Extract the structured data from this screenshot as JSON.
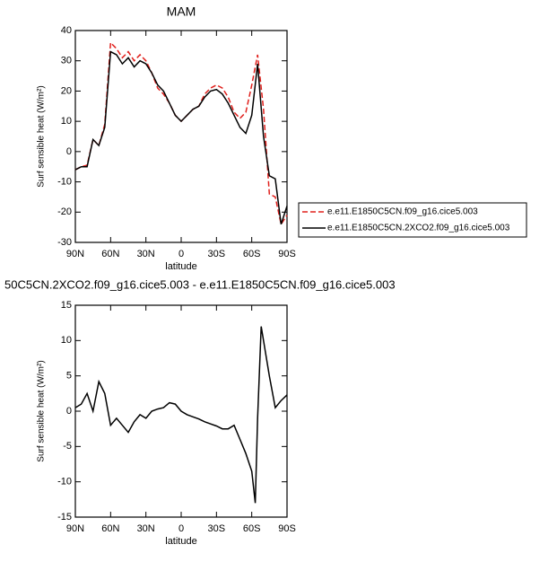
{
  "chart_data": [
    {
      "type": "line",
      "title": "MAM",
      "xlabel": "latitude",
      "ylabel": "Surf sensible heat (W/m²)",
      "x": [
        90,
        85,
        80,
        75,
        70,
        65,
        60,
        55,
        50,
        45,
        40,
        35,
        30,
        25,
        20,
        15,
        10,
        5,
        0,
        -5,
        -10,
        -15,
        -20,
        -25,
        -30,
        -35,
        -40,
        -45,
        -50,
        -55,
        -60,
        -65,
        -70,
        -75,
        -80,
        -85,
        -90
      ],
      "xlim": [
        90,
        -90
      ],
      "xticks": [
        {
          "value": 90,
          "label": "90N"
        },
        {
          "value": 60,
          "label": "60N"
        },
        {
          "value": 30,
          "label": "30N"
        },
        0,
        {
          "value": -30,
          "label": "30S"
        },
        {
          "value": -60,
          "label": "60S"
        },
        {
          "value": -90,
          "label": "90S"
        }
      ],
      "ylim": [
        -30,
        40
      ],
      "yticks": [
        -30,
        -20,
        -10,
        0,
        10,
        20,
        30,
        40
      ],
      "series": [
        {
          "name": "e.e11.E1850C5CN.f09_g16.cice5.003",
          "color": "#e0201c",
          "dash": true,
          "values": [
            -6,
            -5,
            -4.5,
            4,
            2,
            9,
            36,
            34,
            31,
            33,
            30,
            32,
            30,
            26,
            21,
            19,
            16,
            12,
            10,
            12,
            14,
            15,
            19,
            21,
            22,
            21,
            18,
            13,
            11,
            13,
            22,
            32,
            14,
            -14,
            -15,
            -24,
            -21
          ]
        },
        {
          "name": "e.e11.E1850C5CN.2XCO2.f09_g16.cice5.003",
          "color": "#000000",
          "dash": false,
          "values": [
            -6,
            -5,
            -5,
            4,
            2,
            8,
            33,
            32,
            29,
            31,
            28,
            30,
            29,
            26,
            22,
            20,
            16,
            12,
            10,
            12,
            14,
            15,
            18,
            20,
            20.5,
            19,
            16,
            12,
            8,
            6,
            12,
            29,
            5,
            -8,
            -9,
            -24,
            -18
          ]
        }
      ]
    },
    {
      "type": "line",
      "title": "50C5CN.2XCO2.f09_g16.cice5.003 - e.e11.E1850C5CN.f09_g16.cice5.003",
      "xlabel": "latitude",
      "ylabel": "Surf sensible heat (W/m²)",
      "x": [
        90,
        85,
        80,
        75,
        70,
        65,
        60,
        55,
        50,
        45,
        40,
        35,
        30,
        25,
        20,
        15,
        10,
        5,
        0,
        -5,
        -10,
        -15,
        -20,
        -25,
        -30,
        -35,
        -40,
        -45,
        -50,
        -55,
        -60,
        -63,
        -65,
        -68,
        -75,
        -80,
        -85,
        -90
      ],
      "xlim": [
        90,
        -90
      ],
      "xticks": [
        {
          "value": 90,
          "label": "90N"
        },
        {
          "value": 60,
          "label": "60N"
        },
        {
          "value": 30,
          "label": "30N"
        },
        0,
        {
          "value": -30,
          "label": "30S"
        },
        {
          "value": -60,
          "label": "60S"
        },
        {
          "value": -90,
          "label": "90S"
        }
      ],
      "ylim": [
        -15,
        15
      ],
      "yticks": [
        -15,
        -10,
        -5,
        0,
        5,
        10,
        15
      ],
      "series": [
        {
          "color": "#000000",
          "dash": false,
          "values": [
            0.5,
            1,
            2.5,
            0,
            4.2,
            2.5,
            -2,
            -1,
            -2,
            -3,
            -1.5,
            -0.5,
            -1,
            0,
            0.3,
            0.5,
            1.2,
            1,
            0,
            -0.5,
            -0.8,
            -1.1,
            -1.5,
            -1.8,
            -2.1,
            -2.5,
            -2.5,
            -2,
            -4,
            -6,
            -8.5,
            -13,
            -1,
            12,
            5,
            0.5,
            1.5,
            2.3
          ]
        }
      ]
    }
  ]
}
